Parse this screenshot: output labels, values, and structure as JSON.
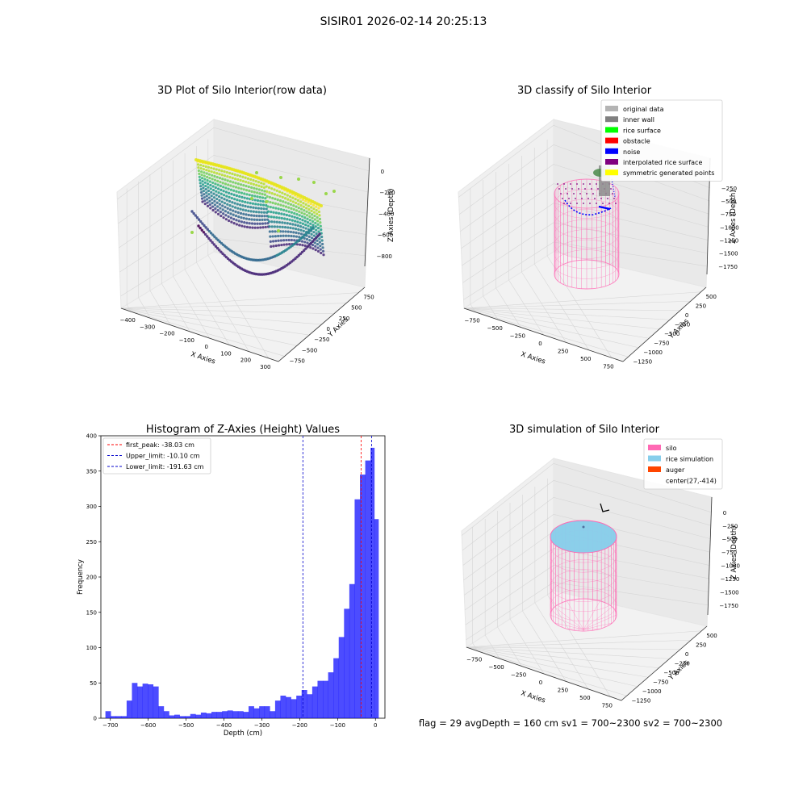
{
  "suptitle": "SISIR01 2026-02-14 20:25:13",
  "footer_text": "flag = 29  avgDepth = 160 cm  sv1 = 700~2300  sv2 = 700~2300",
  "chart_data": [
    {
      "type": "scatter",
      "projection": "3d",
      "title": "3D Plot of Silo Interior(row data)",
      "xlabel": "X Axies",
      "ylabel": "Y Axies",
      "zlabel": "Z Axies (Depth)",
      "xticks": [
        "−400",
        "−300",
        "−200",
        "−100",
        "0",
        "100",
        "200",
        "300"
      ],
      "yticks": [
        "−750",
        "−500",
        "−250",
        "0",
        "250",
        "500",
        "750"
      ],
      "zticks": [
        "0",
        "−200",
        "−400",
        "−600",
        "−800"
      ],
      "colormap": "viridis"
    },
    {
      "type": "scatter",
      "projection": "3d",
      "title": "3D classify of Silo Interior",
      "xlabel": "X Axies",
      "ylabel": "Y Axies",
      "zlabel": "Z Axies (Depth)",
      "xticks": [
        "−750",
        "−500",
        "−250",
        "0",
        "250",
        "500",
        "750"
      ],
      "yticks": [
        "−1250",
        "−1000",
        "−750",
        "−500",
        "−250",
        "0",
        "250",
        "500"
      ],
      "zticks": [
        "−250",
        "−500",
        "−750",
        "−1000",
        "−1250",
        "−1500",
        "−1750"
      ],
      "legend_position": "top-right",
      "legend": [
        {
          "label": "original data",
          "color": "#b4b4b4"
        },
        {
          "label": "inner wall",
          "color": "#808080"
        },
        {
          "label": "rice surface",
          "color": "#00ff00"
        },
        {
          "label": "obstacle",
          "color": "#ff0000"
        },
        {
          "label": "noise",
          "color": "#0000ff"
        },
        {
          "label": "interpolated rice surface",
          "color": "#800080"
        },
        {
          "label": "symmetric generated points",
          "color": "#ffff00"
        }
      ]
    },
    {
      "type": "bar",
      "title": "Histogram of Z-Axies (Height) Values",
      "xlabel": "Depth (cm)",
      "ylabel": "Frequency",
      "xlim": [
        -725,
        25
      ],
      "ylim": [
        0,
        400
      ],
      "xticks": [
        -700,
        -600,
        -500,
        -400,
        -300,
        -200,
        -100,
        0
      ],
      "xtick_labels": [
        "−700",
        "−600",
        "−500",
        "−400",
        "−300",
        "−200",
        "−100",
        "0"
      ],
      "yticks": [
        0,
        50,
        100,
        150,
        200,
        250,
        300,
        350,
        400
      ],
      "bar_color": "#0000ff",
      "bins": [
        [
          -713,
          -699,
          10
        ],
        [
          -699,
          -685,
          3
        ],
        [
          -685,
          -671,
          3
        ],
        [
          -671,
          -657,
          3
        ],
        [
          -657,
          -643,
          25
        ],
        [
          -643,
          -629,
          50
        ],
        [
          -629,
          -615,
          45
        ],
        [
          -615,
          -601,
          49
        ],
        [
          -601,
          -587,
          48
        ],
        [
          -587,
          -573,
          45
        ],
        [
          -573,
          -559,
          17
        ],
        [
          -559,
          -545,
          10
        ],
        [
          -545,
          -531,
          4
        ],
        [
          -531,
          -517,
          5
        ],
        [
          -517,
          -503,
          3
        ],
        [
          -503,
          -489,
          3
        ],
        [
          -489,
          -475,
          6
        ],
        [
          -475,
          -461,
          5
        ],
        [
          -461,
          -447,
          8
        ],
        [
          -447,
          -433,
          7
        ],
        [
          -433,
          -419,
          9
        ],
        [
          -419,
          -405,
          9
        ],
        [
          -405,
          -391,
          10
        ],
        [
          -391,
          -377,
          11
        ],
        [
          -377,
          -363,
          10
        ],
        [
          -363,
          -349,
          10
        ],
        [
          -349,
          -335,
          9
        ],
        [
          -335,
          -321,
          17
        ],
        [
          -321,
          -307,
          14
        ],
        [
          -307,
          -293,
          17
        ],
        [
          -293,
          -279,
          17
        ],
        [
          -279,
          -265,
          10
        ],
        [
          -265,
          -251,
          25
        ],
        [
          -251,
          -237,
          32
        ],
        [
          -237,
          -223,
          30
        ],
        [
          -223,
          -209,
          27
        ],
        [
          -209,
          -195,
          32
        ],
        [
          -195,
          -181,
          40
        ],
        [
          -181,
          -167,
          34
        ],
        [
          -167,
          -153,
          45
        ],
        [
          -153,
          -139,
          53
        ],
        [
          -139,
          -125,
          53
        ],
        [
          -125,
          -111,
          65
        ],
        [
          -111,
          -97,
          85
        ],
        [
          -97,
          -83,
          115
        ],
        [
          -83,
          -69,
          155
        ],
        [
          -69,
          -55,
          190
        ],
        [
          -55,
          -41,
          310
        ],
        [
          -41,
          -27,
          345
        ],
        [
          -27,
          -13,
          365
        ],
        [
          -13,
          -3,
          383
        ],
        [
          -3,
          8,
          282
        ]
      ],
      "vlines": [
        {
          "label": "first_peak: -38.03 cm",
          "x": -38.03,
          "color": "#ff0000"
        },
        {
          "label": "Upper_limit: -10.10 cm",
          "x": -10.1,
          "color": "#0000cc"
        },
        {
          "label": "Lower_limit: -191.63 cm",
          "x": -191.63,
          "color": "#0000cc"
        }
      ],
      "legend_position": "top-left"
    },
    {
      "type": "scatter",
      "projection": "3d",
      "title": "3D simulation of Silo Interior",
      "xlabel": "X Axies",
      "ylabel": "Y Axies",
      "zlabel": "Z Axies (Depth)",
      "xticks": [
        "−750",
        "−500",
        "−250",
        "0",
        "250",
        "500",
        "750"
      ],
      "yticks": [
        "−1250",
        "−1000",
        "−750",
        "−500",
        "−250",
        "0",
        "250",
        "500"
      ],
      "zticks": [
        "0",
        "−250",
        "−500",
        "−750",
        "−1000",
        "−1250",
        "−1500",
        "−1750"
      ],
      "legend_position": "top-right",
      "legend": [
        {
          "label": "silo",
          "color": "#ff69b4"
        },
        {
          "label": "rice simulation",
          "color": "#87ceeb"
        },
        {
          "label": "auger",
          "color": "#ff4500"
        },
        {
          "label": "center(27,-414)",
          "color": "none"
        }
      ]
    }
  ]
}
